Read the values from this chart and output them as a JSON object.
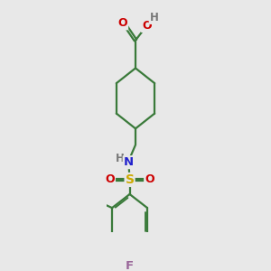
{
  "background_color": "#e8e8e8",
  "bond_color": "#3a7a3a",
  "bond_width": 1.6,
  "atom_colors": {
    "O": "#cc0000",
    "N": "#2222cc",
    "S": "#ccaa00",
    "F": "#996699",
    "C": "#3a7a3a",
    "H": "#777777"
  },
  "fig_width": 3.0,
  "fig_height": 3.0,
  "dpi": 100,
  "font_size": 8.5
}
